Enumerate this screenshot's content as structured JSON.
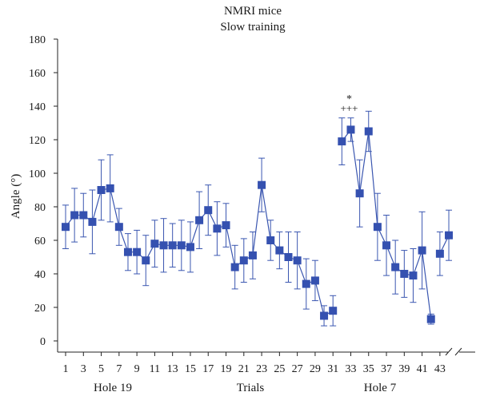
{
  "chart_data": {
    "type": "line",
    "title": "NMRI mice",
    "subtitle": "Slow training",
    "xlabel": "Trials",
    "ylabel": "Angle (°)",
    "ylim": [
      0,
      180
    ],
    "yticks": [
      0,
      20,
      40,
      60,
      80,
      100,
      120,
      140,
      160,
      180
    ],
    "xticks": [
      "1",
      "3",
      "5",
      "7",
      "9",
      "11",
      "13",
      "15",
      "17",
      "19",
      "21",
      "23",
      "25",
      "27",
      "29",
      "31",
      "33",
      "35",
      "37",
      "39",
      "41",
      "43"
    ],
    "group_labels": [
      "Hole 19",
      "Trials",
      "Hole 7"
    ],
    "axis_break_after_trial": 42,
    "grid": false,
    "colors": {
      "series": "#3551b0",
      "axis": "#222222"
    },
    "annotations": [
      {
        "text": "*",
        "trial": 33
      },
      {
        "text": "+++",
        "trial": 33
      }
    ],
    "series": [
      {
        "x": [
          1,
          2,
          3,
          4,
          5,
          6,
          7,
          8,
          9,
          10,
          11,
          12,
          13,
          14,
          15,
          16,
          17,
          18,
          19,
          20,
          21,
          22,
          23,
          24,
          25,
          26,
          27,
          28,
          29,
          30,
          31
        ],
        "values": [
          68,
          75,
          75,
          71,
          90,
          91,
          68,
          53,
          53,
          48,
          58,
          57,
          57,
          57,
          56,
          72,
          78,
          67,
          69,
          44,
          48,
          51,
          93,
          60,
          54,
          50,
          48,
          34,
          36,
          15,
          18
        ],
        "err": [
          13,
          16,
          13,
          19,
          18,
          20,
          11,
          11,
          13,
          15,
          14,
          16,
          13,
          15,
          15,
          17,
          15,
          16,
          13,
          13,
          13,
          14,
          16,
          12,
          11,
          15,
          17,
          15,
          12,
          6,
          9
        ]
      },
      {
        "x": [
          32,
          33,
          34,
          35,
          36,
          37,
          38,
          39,
          40,
          41,
          42
        ],
        "values": [
          119,
          126,
          88,
          125,
          68,
          57,
          44,
          40,
          39,
          54,
          13
        ],
        "err": [
          14,
          7,
          20,
          12,
          20,
          18,
          16,
          14,
          16,
          23,
          3
        ]
      },
      {
        "x": [
          43,
          44
        ],
        "values": [
          52,
          63
        ],
        "err": [
          13,
          15
        ]
      }
    ]
  }
}
